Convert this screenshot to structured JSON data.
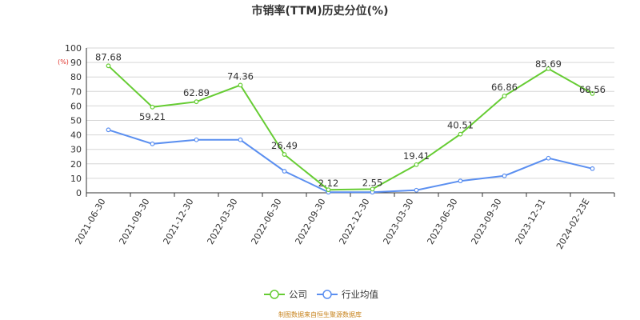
{
  "chart_data": {
    "type": "line",
    "title": "市销率(TTM)历史分位(%)",
    "unit": "(%)",
    "categories": [
      "2021-06-30",
      "2021-09-30",
      "2021-12-30",
      "2022-03-30",
      "2022-06-30",
      "2022-09-30",
      "2022-12-30",
      "2023-03-30",
      "2023-06-30",
      "2023-09-30",
      "2023-12-31",
      "2024-02-23E"
    ],
    "y_ticks": [
      0,
      10,
      20,
      30,
      40,
      50,
      60,
      70,
      80,
      90,
      100
    ],
    "ylim": [
      0,
      100
    ],
    "grid": "horizontal",
    "legend_position": "bottom-center",
    "series": [
      {
        "name": "公司",
        "color": "#66cc33",
        "values": [
          87.68,
          59.21,
          62.89,
          74.36,
          26.49,
          2.12,
          2.55,
          19.41,
          40.51,
          66.86,
          85.69,
          68.56
        ],
        "labels": [
          "87.68",
          "59.21",
          "62.89",
          "74.36",
          "26.49",
          "2.12",
          "2.55",
          "19.41",
          "40.51",
          "66.86",
          "85.69",
          "68.56"
        ]
      },
      {
        "name": "行业均值",
        "color": "#5b8ff0",
        "values": [
          43.5,
          33.8,
          36.6,
          36.6,
          14.9,
          0.4,
          0.4,
          1.8,
          8.2,
          11.7,
          23.9,
          16.7
        ]
      }
    ]
  },
  "source_note": "制图数据来自恒生聚源数据库"
}
